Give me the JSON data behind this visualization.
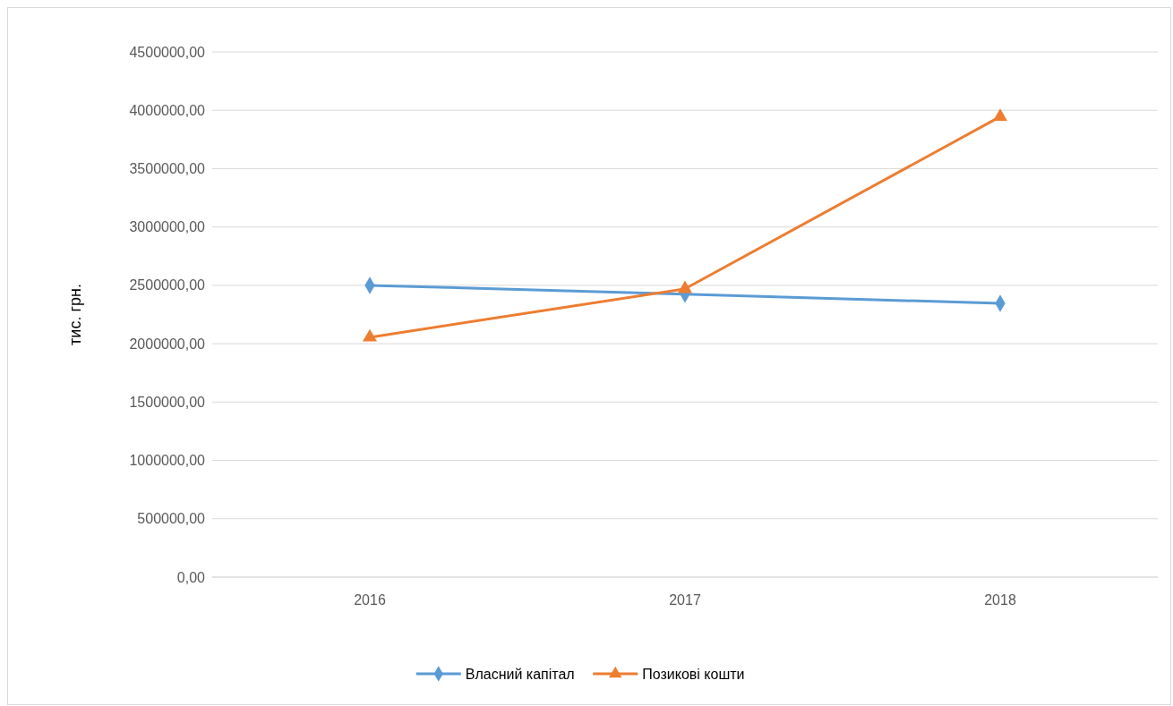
{
  "chart_data": {
    "type": "line",
    "ylabel": "тис. грн.",
    "categories": [
      "2016",
      "2017",
      "2018"
    ],
    "series": [
      {
        "name": "Власний капітал",
        "color": "#5b9bd5",
        "marker": "diamond",
        "values": [
          2500000,
          2425000,
          2345000
        ]
      },
      {
        "name": "Позикові кошти",
        "color": "#ed7d31",
        "marker": "triangle",
        "values": [
          2055000,
          2470000,
          3945000
        ]
      }
    ],
    "ylim": [
      0,
      4500000
    ],
    "yticks": [
      {
        "value": 0,
        "label": "0,00"
      },
      {
        "value": 500000,
        "label": "500000,00"
      },
      {
        "value": 1000000,
        "label": "1000000,00"
      },
      {
        "value": 1500000,
        "label": "1500000,00"
      },
      {
        "value": 2000000,
        "label": "2000000,00"
      },
      {
        "value": 2500000,
        "label": "2500000,00"
      },
      {
        "value": 3000000,
        "label": "3000000,00"
      },
      {
        "value": 3500000,
        "label": "3500000,00"
      },
      {
        "value": 4000000,
        "label": "4000000,00"
      },
      {
        "value": 4500000,
        "label": "4500000,00"
      }
    ],
    "grid": "y",
    "legend": "bottom",
    "line_style": "solid"
  }
}
